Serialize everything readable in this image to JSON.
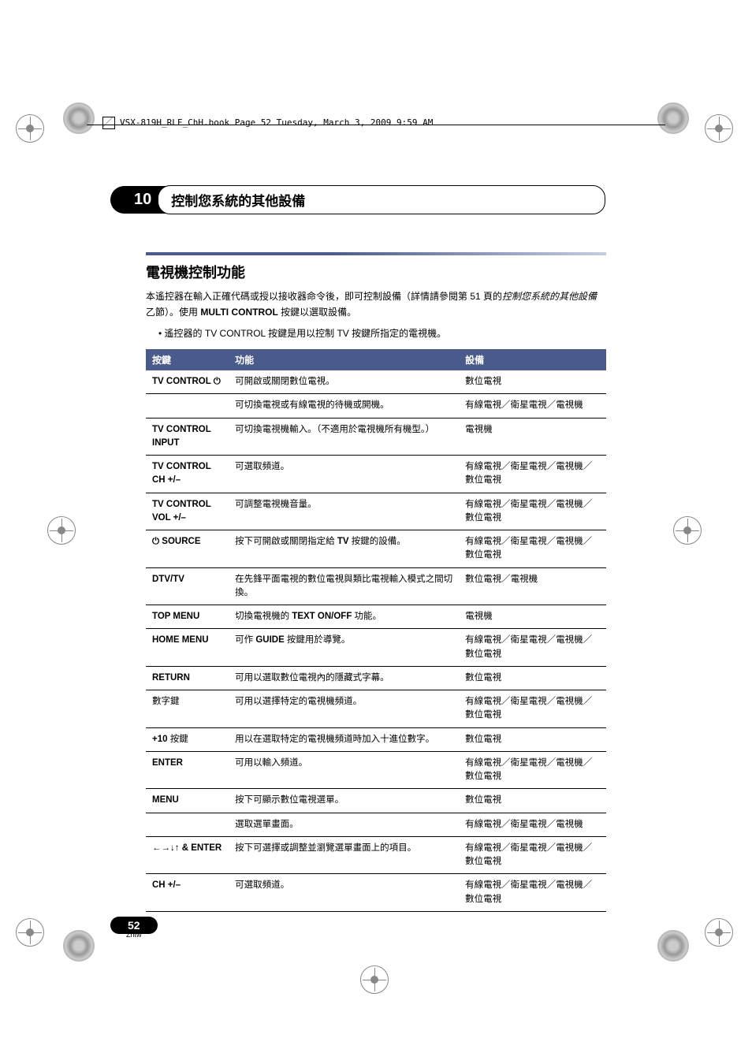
{
  "file_path": "VSX-819H_RLF_ChH.book  Page 52  Tuesday, March 3, 2009  9:59 AM",
  "chapter": {
    "number": "10",
    "title": "控制您系統的其他設備"
  },
  "section": {
    "title": "電視機控制功能",
    "intro_line1_a": "本遙控器在輸入正確代碼或授以接收器命令後，即可控制設備（詳情請參閱第 51 頁的",
    "intro_line1_b": "控制您系統的其他設備",
    "intro_line1_c": "乙節）。使用 ",
    "intro_line1_d": "MULTI CONTROL",
    "intro_line1_e": " 按鍵以選取設備。",
    "bullet_a": "• 遙控器的 ",
    "bullet_b": "TV CONTROL",
    "bullet_c": " 按鍵是用以控制 ",
    "bullet_d": "TV",
    "bullet_e": " 按鍵所指定的電視機。"
  },
  "table": {
    "headers": [
      "按鍵",
      "功能",
      "設備"
    ],
    "rows": [
      {
        "key": "TV CONTROL ⏻",
        "func": "可開啟或關閉數位電視。",
        "device": "數位電視"
      },
      {
        "key": "",
        "func": "可切換電視或有線電視的待機或開機。",
        "device": "有線電視／衛星電視／電視機"
      },
      {
        "key": "TV CONTROL INPUT",
        "func": "可切換電視機輸入。（不適用於電視機所有機型。）",
        "device": "電視機"
      },
      {
        "key": "TV CONTROL CH +/–",
        "func": "可選取頻道。",
        "device": "有線電視／衛星電視／電視機／數位電視"
      },
      {
        "key": "TV CONTROL VOL +/–",
        "func": "可調整電視機音量。",
        "device": "有線電視／衛星電視／電視機／數位電視"
      },
      {
        "key": "⏻ SOURCE",
        "func_a": "按下可開啟或關閉指定給 ",
        "func_b": "TV",
        "func_c": " 按鍵的設備。",
        "device": "有線電視／衛星電視／電視機／數位電視"
      },
      {
        "key": "DTV/TV",
        "func": "在先鋒平面電視的數位電視與類比電視輸入模式之間切換。",
        "device": "數位電視／電視機"
      },
      {
        "key": "TOP MENU",
        "func_a": "切換電視機的 ",
        "func_b": "TEXT ON/OFF",
        "func_c": " 功能。",
        "device": "電視機"
      },
      {
        "key": "HOME MENU",
        "func_a": "可作 ",
        "func_b": "GUIDE",
        "func_c": " 按鍵用於導覽。",
        "device": "有線電視／衛星電視／電視機／數位電視"
      },
      {
        "key": "RETURN",
        "func": "可用以選取數位電視內的隱藏式字幕。",
        "device": "數位電視"
      },
      {
        "key": "數字鍵",
        "func": "可用以選擇特定的電視機頻道。",
        "device": "有線電視／衛星電視／電視機／數位電視"
      },
      {
        "key_a": "+10",
        "key_b": " 按鍵",
        "func": "用以在選取特定的電視機頻道時加入十進位數字。",
        "device": "數位電視"
      },
      {
        "key": "ENTER",
        "func": "可用以輸入頻道。",
        "device": "有線電視／衛星電視／電視機／數位電視"
      },
      {
        "key": "MENU",
        "func": "按下可顯示數位電視選單。",
        "device": "數位電視"
      },
      {
        "key": "",
        "func": "選取選單畫面。",
        "device": "有線電視／衛星電視／電視機"
      },
      {
        "key_arrows": "←→↓↑",
        "key_rest": " & ENTER",
        "func": "按下可選擇或調整並瀏覽選單畫面上的項目。",
        "device": "有線電視／衛星電視／電視機／數位電視"
      },
      {
        "key": "CH +/–",
        "func": "可選取頻道。",
        "device": "有線電視／衛星電視／電視機／數位電視"
      }
    ]
  },
  "footer": {
    "page": "52",
    "lang": "Zhtw"
  },
  "colors": {
    "header_bg": "#4a5a8a",
    "header_gradient_end": "#c5cde0"
  }
}
